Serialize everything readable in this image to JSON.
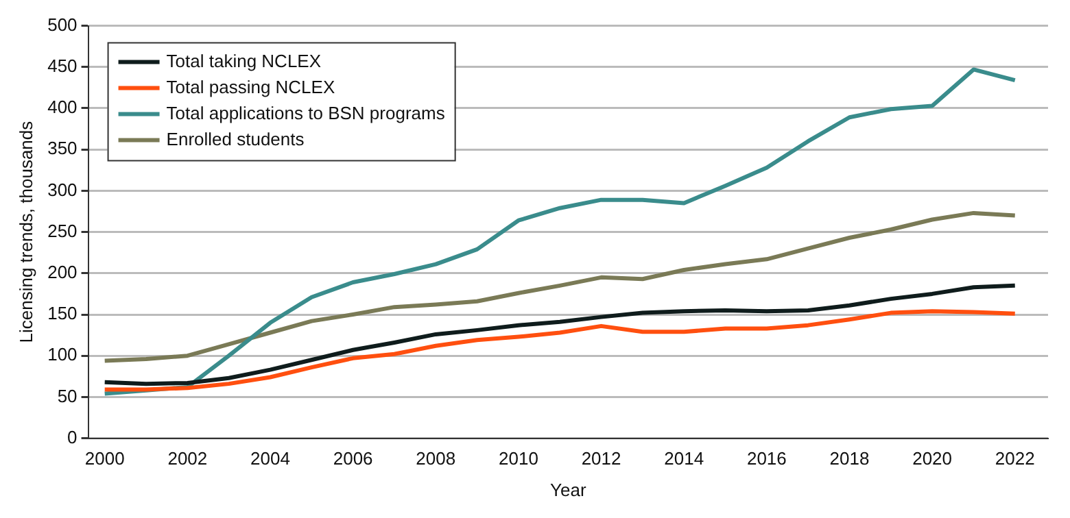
{
  "chart_data": {
    "type": "line",
    "xlabel": "Year",
    "ylabel": "Licensing trends, thousands",
    "x": [
      2000,
      2001,
      2002,
      2003,
      2004,
      2005,
      2006,
      2007,
      2008,
      2009,
      2010,
      2011,
      2012,
      2013,
      2014,
      2015,
      2016,
      2017,
      2018,
      2019,
      2020,
      2021,
      2022
    ],
    "series": [
      {
        "name": "Total taking NCLEX",
        "color": "#0f1c1c",
        "values": [
          68,
          66,
          67,
          73,
          83,
          95,
          107,
          116,
          126,
          131,
          137,
          141,
          147,
          152,
          154,
          155,
          154,
          155,
          161,
          169,
          175,
          183,
          185
        ]
      },
      {
        "name": "Total passing NCLEX",
        "color": "#ff4f0f",
        "values": [
          59,
          59,
          61,
          66,
          74,
          86,
          97,
          102,
          112,
          119,
          123,
          128,
          136,
          129,
          129,
          133,
          133,
          137,
          144,
          152,
          154,
          153,
          151
        ]
      },
      {
        "name": "Total applications to BSN programs",
        "color": "#3a8c8c",
        "values": [
          54,
          58,
          62,
          100,
          140,
          171,
          189,
          199,
          211,
          229,
          264,
          279,
          289,
          289,
          285,
          306,
          328,
          360,
          389,
          399,
          403,
          447,
          434
        ]
      },
      {
        "name": "Enrolled students",
        "color": "#7a7a56",
        "values": [
          94,
          96,
          100,
          114,
          128,
          142,
          150,
          159,
          162,
          166,
          176,
          185,
          195,
          193,
          204,
          211,
          217,
          230,
          243,
          253,
          265,
          273,
          270
        ]
      }
    ],
    "xlim": [
      1999.6,
      2022.8
    ],
    "xticks": [
      2000,
      2002,
      2004,
      2006,
      2008,
      2010,
      2012,
      2014,
      2016,
      2018,
      2020,
      2022
    ],
    "ylim": [
      0,
      500
    ],
    "yticks": [
      0,
      50,
      100,
      150,
      200,
      250,
      300,
      350,
      400,
      450,
      500
    ],
    "grid": "y",
    "legend": "top left",
    "marker": "none",
    "line_style": "solid"
  }
}
